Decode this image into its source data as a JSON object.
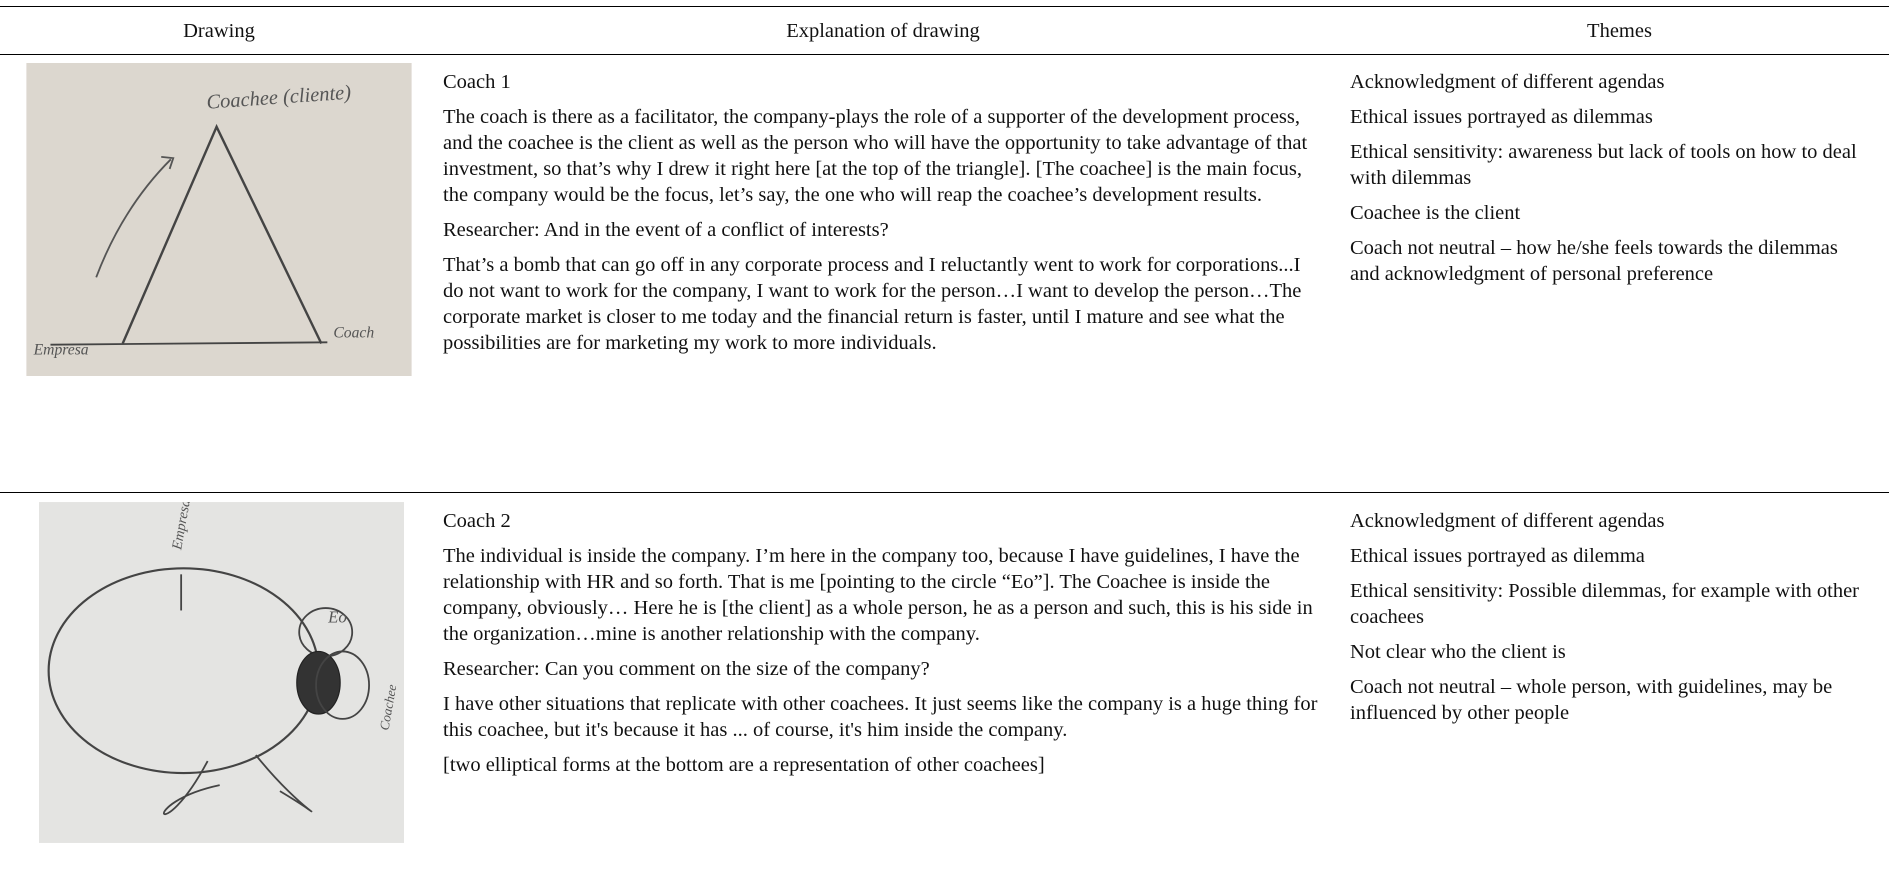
{
  "header": {
    "columns": [
      "Drawing",
      "Explanation of drawing",
      "Themes"
    ]
  },
  "rows": [
    {
      "drawing_labels": [
        "Coachee (cliente)",
        "Empresa",
        "Coach"
      ],
      "coach": "Coach 1",
      "paragraphs": [
        "The coach is there as a facilitator, the company-plays the role of a supporter of the development process, and the coachee is the client as well as the person who will have the opportunity to take advantage of that investment, so that’s why I drew it right here [at the top of the triangle]. [The coachee] is the main focus, the company would be the focus, let’s say, the one who will reap the coachee’s development results.",
        "Researcher: And in the event of a conflict of interests?",
        "That’s a bomb that can go off in any corporate process and I reluctantly went to work for corporations...I do not want to work for the company, I want to work for the person…I want to develop the person…The corporate market is closer to me today and the financial return is faster, until I mature and see what the possibilities are for marketing my work to more individuals."
      ],
      "themes": [
        "Acknowledgment of different agendas",
        "Ethical issues portrayed as dilemmas",
        "Ethical sensitivity: awareness but lack of tools on how to deal with dilemmas",
        "Coachee is the client",
        "Coach not neutral – how he/she feels towards the dilemmas and acknowledgment of personal preference"
      ]
    },
    {
      "drawing_labels": [
        "Empresa",
        "Eo",
        "Coachee"
      ],
      "coach": "Coach 2",
      "paragraphs": [
        "The individual is inside the company. I’m here in the company too, because I have guidelines, I have the relationship with HR and so forth.  That is me [pointing to the circle “Eo”]. The Coachee is inside the company, obviously… Here he is [the client] as a whole person, he as a person and such, this is his side in the organization…mine is another relationship with the company.",
        "Researcher: Can you comment on the size of the company?",
        "I have other situations that replicate with other coachees. It just seems like the company is a huge thing for this coachee, but it's because it has ... of course, it's him inside the company.",
        "[two elliptical forms at the bottom are a representation of other coachees]"
      ],
      "themes": [
        "Acknowledgment of different agendas",
        "Ethical issues portrayed as dilemma",
        "Ethical sensitivity: Possible dilemmas, for example with other coachees",
        "Not clear who the client is",
        "Coach not neutral – whole person, with guidelines, may be influenced by other people"
      ]
    }
  ]
}
